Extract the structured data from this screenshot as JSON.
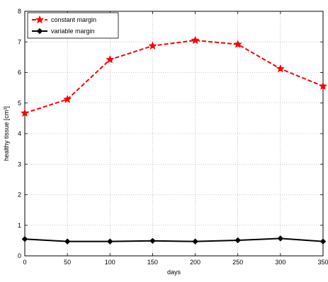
{
  "chart_data": {
    "type": "line",
    "xlabel": "days",
    "ylabel": "healthy tissue [cm³]",
    "xlim": [
      0,
      350
    ],
    "ylim": [
      0,
      8
    ],
    "xticks": [
      0,
      50,
      100,
      150,
      200,
      250,
      300,
      350
    ],
    "yticks": [
      0,
      1,
      2,
      3,
      4,
      5,
      6,
      7,
      8
    ],
    "grid": true,
    "legend_position": "top-left",
    "x": [
      0,
      50,
      100,
      150,
      200,
      250,
      300,
      350
    ],
    "series": [
      {
        "name": "constant margin",
        "values": [
          4.67,
          5.12,
          6.42,
          6.87,
          7.05,
          6.92,
          6.12,
          5.55
        ],
        "color": "#ff0000",
        "line_style": "dashed",
        "marker": "star"
      },
      {
        "name": "variable margin",
        "values": [
          0.55,
          0.47,
          0.47,
          0.49,
          0.47,
          0.51,
          0.57,
          0.47
        ],
        "color": "#000000",
        "line_style": "solid",
        "marker": "diamond"
      }
    ]
  }
}
